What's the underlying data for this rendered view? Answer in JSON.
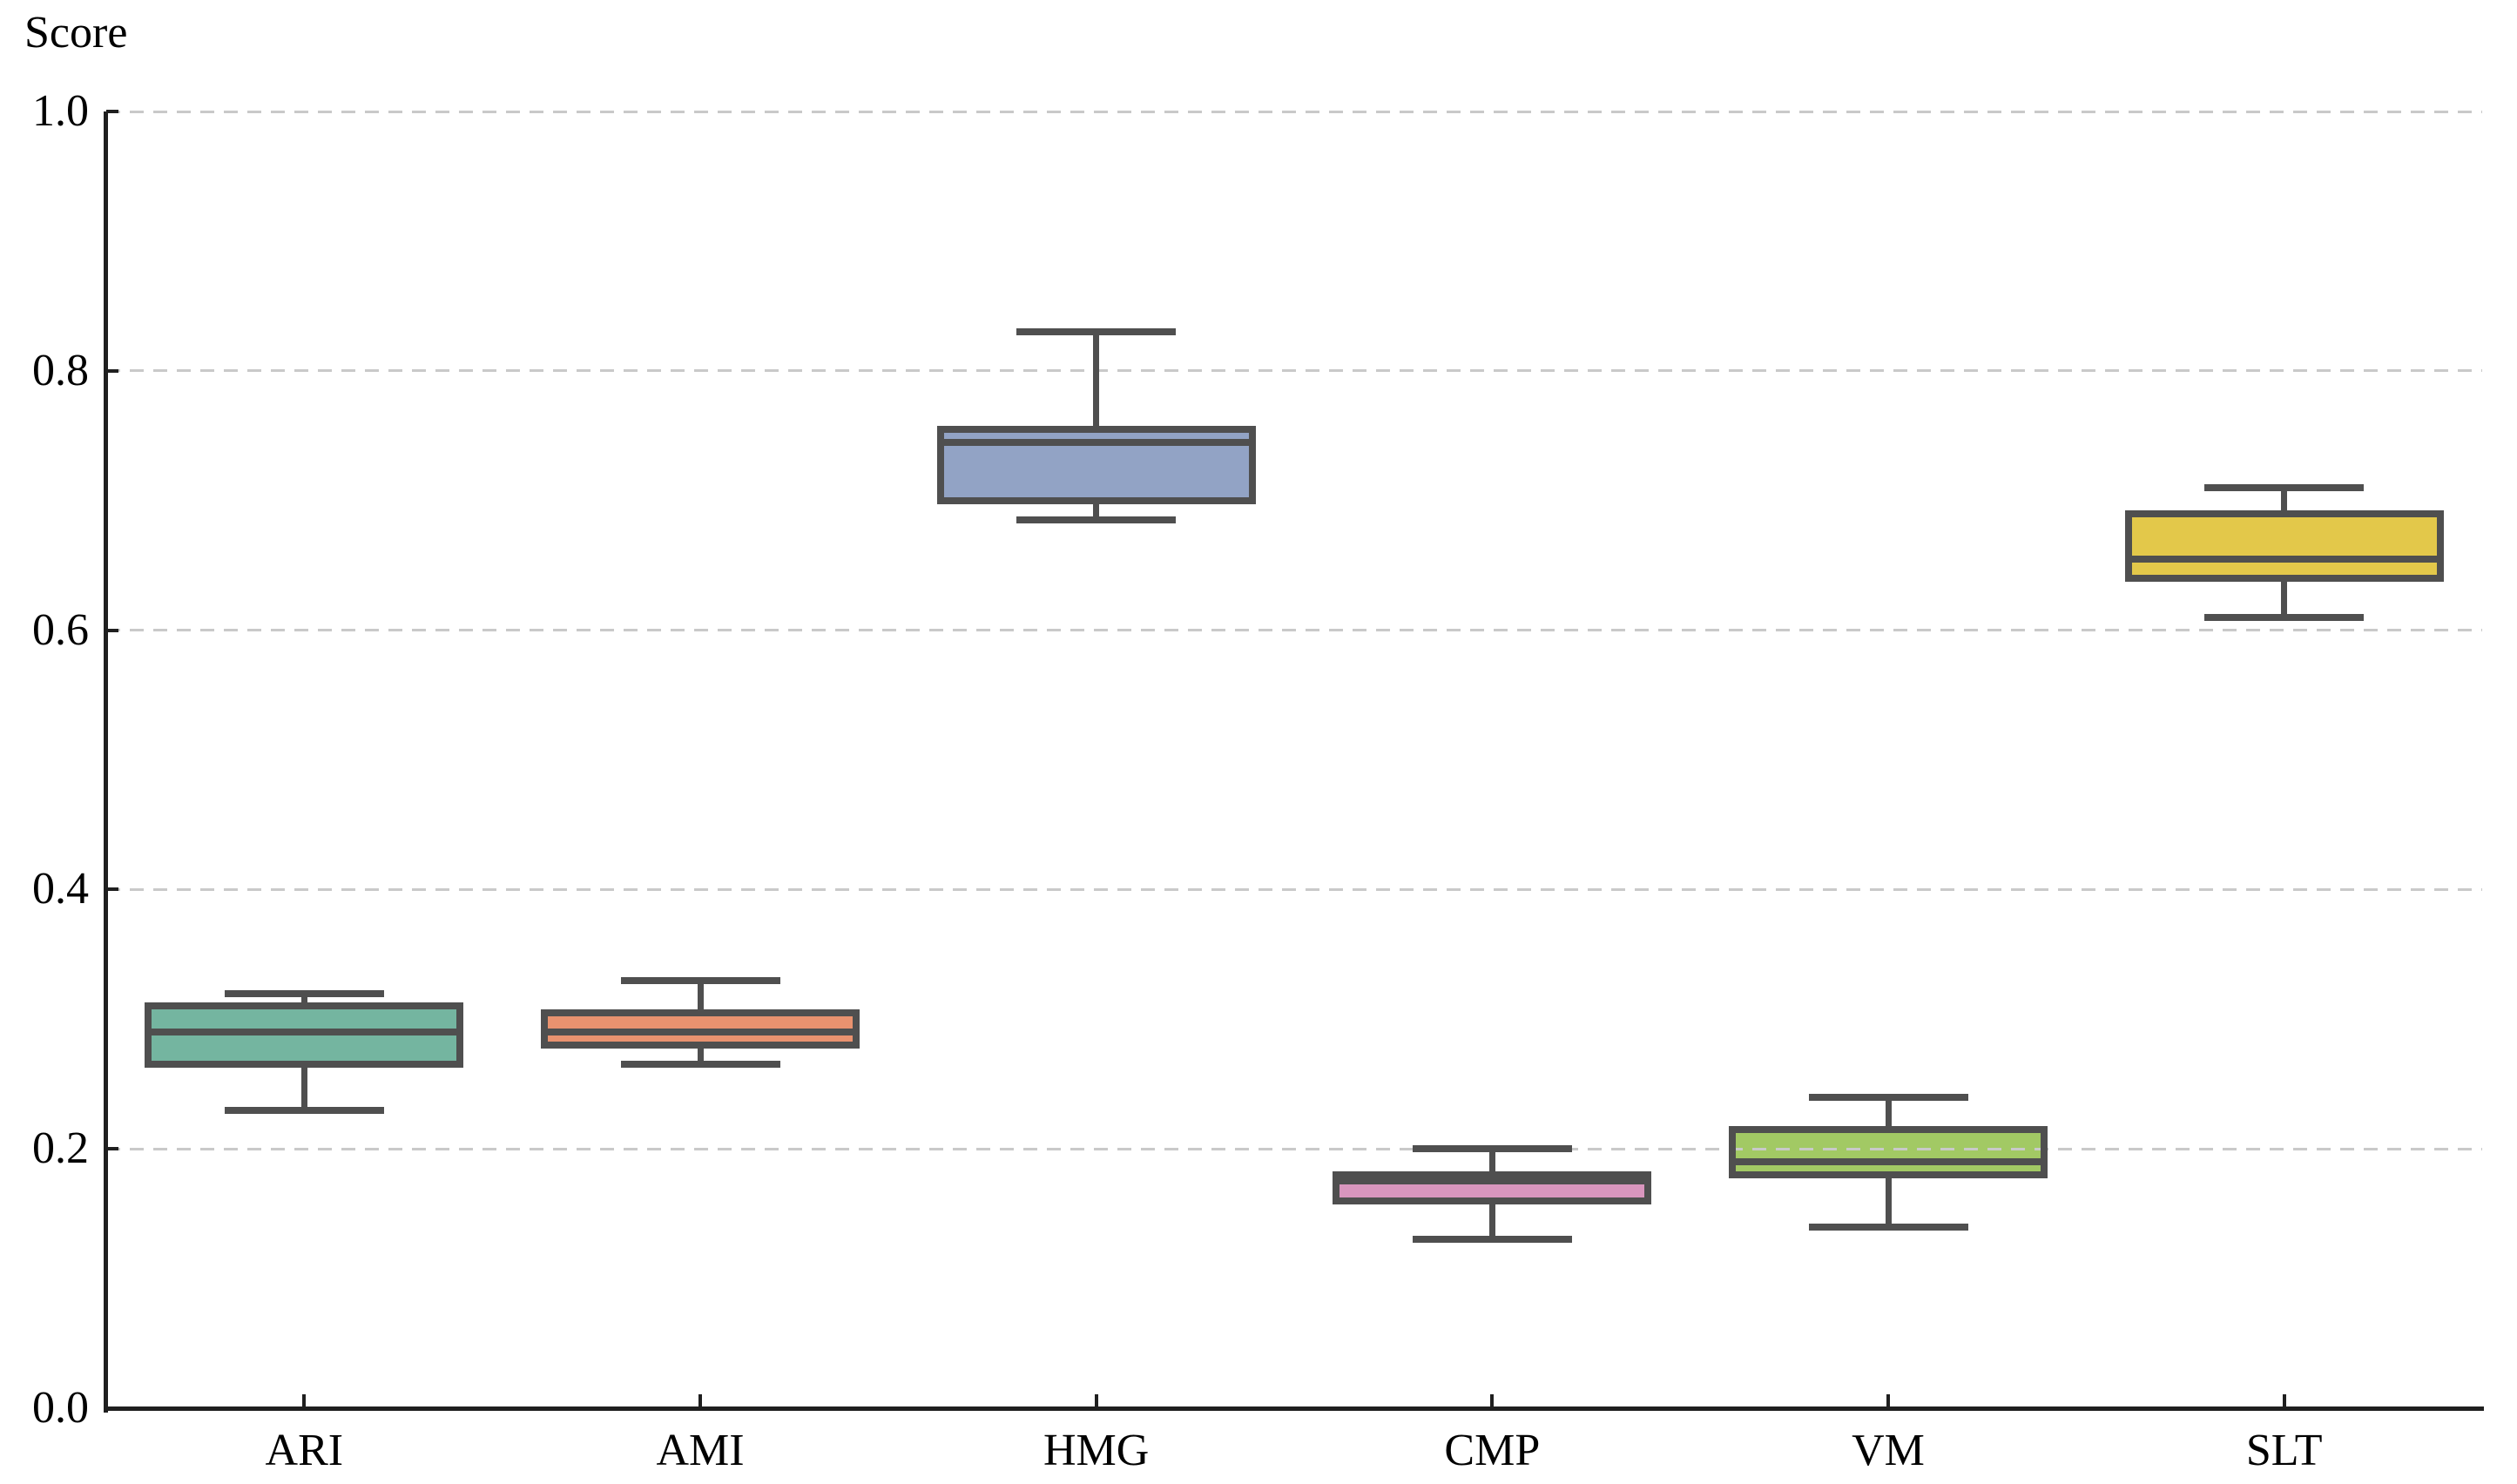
{
  "chart_data": {
    "type": "box",
    "title": "Score",
    "ylabel": "Score",
    "xlabel": "",
    "ylim": [
      0.0,
      1.0
    ],
    "yticks": [
      "0.0",
      "0.2",
      "0.4",
      "0.6",
      "0.8",
      "1.0"
    ],
    "ytick_values": [
      0.0,
      0.2,
      0.4,
      0.6,
      0.8,
      1.0
    ],
    "grid": "horizontal dashed, drawn above box fills",
    "legend": "none",
    "categories": [
      "ARI",
      "AMI",
      "HMG",
      "CMP",
      "VM",
      "SLT"
    ],
    "series": [
      {
        "name": "ARI",
        "whisker_low": 0.23,
        "q1": 0.265,
        "median": 0.29,
        "q3": 0.31,
        "whisker_high": 0.32,
        "fill_color": "#74B5A0"
      },
      {
        "name": "AMI",
        "whisker_low": 0.265,
        "q1": 0.28,
        "median": 0.29,
        "q3": 0.305,
        "whisker_high": 0.33,
        "fill_color": "#E9926F"
      },
      {
        "name": "HMG",
        "whisker_low": 0.685,
        "q1": 0.7,
        "median": 0.745,
        "q3": 0.755,
        "whisker_high": 0.83,
        "fill_color": "#92A3C5"
      },
      {
        "name": "CMP",
        "whisker_low": 0.13,
        "q1": 0.16,
        "median": 0.175,
        "q3": 0.18,
        "whisker_high": 0.2,
        "fill_color": "#D996BE"
      },
      {
        "name": "VM",
        "whisker_low": 0.14,
        "q1": 0.18,
        "median": 0.19,
        "q3": 0.215,
        "whisker_high": 0.24,
        "fill_color": "#A2C964"
      },
      {
        "name": "SLT",
        "whisker_low": 0.61,
        "q1": 0.64,
        "median": 0.655,
        "q3": 0.69,
        "whisker_high": 0.71,
        "fill_color": "#E3C84A"
      }
    ],
    "colors": {
      "box_line": "#4F4F4F",
      "spine": "#1F1F1F",
      "grid": "#C9C9C9",
      "text": "#000000",
      "background": "#FFFFFF"
    }
  }
}
